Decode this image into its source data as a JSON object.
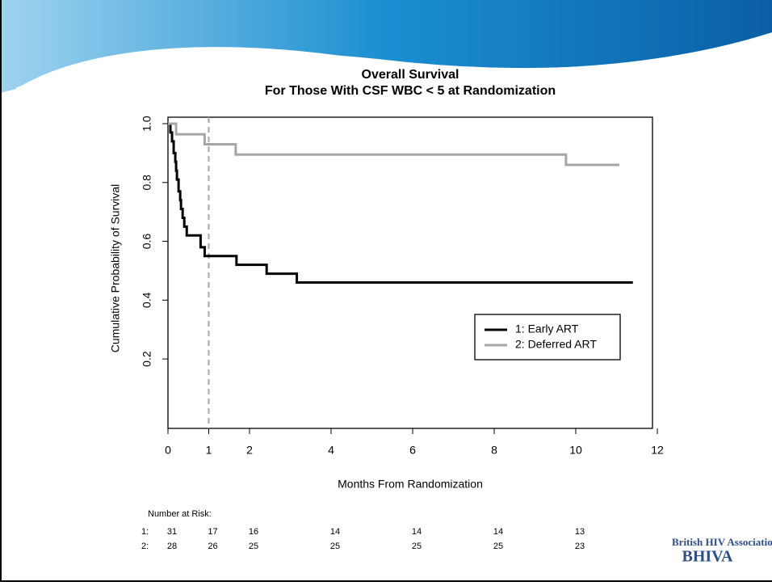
{
  "chart_data": {
    "type": "step",
    "title": "Overall Survival",
    "subtitle": "For Those With CSF WBC < 5 at Randomization",
    "x_label": "Months From Randomization",
    "y_label": "Cumulative Probability of Survival",
    "xlim": [
      0,
      12
    ],
    "ylim": [
      -0.036,
      1.022
    ],
    "xticks": [
      0,
      1,
      2,
      4,
      6,
      8,
      10,
      12
    ],
    "yticks": [
      0.2,
      0.4,
      0.6,
      0.8,
      {
        "value": 1,
        "label": "1.0"
      }
    ],
    "vline": 1,
    "legend": "right",
    "series": [
      {
        "name": "1: Early ART",
        "color": "#000000",
        "x": [
          0,
          0.06,
          0.1,
          0.14,
          0.18,
          0.2,
          0.22,
          0.26,
          0.3,
          0.32,
          0.36,
          0.4,
          0.46,
          0.8,
          0.9,
          1.68,
          2.42,
          3.16,
          11.4
        ],
        "values": [
          1,
          0.97,
          0.94,
          0.9,
          0.87,
          0.84,
          0.81,
          0.77,
          0.74,
          0.71,
          0.68,
          0.65,
          0.62,
          0.58,
          0.55,
          0.52,
          0.49,
          0.46,
          0.46
        ]
      },
      {
        "name": "2: Deferred ART",
        "color": "#a6a6a6",
        "x": [
          0,
          0.2,
          0.9,
          1.66,
          9.76,
          11.07
        ],
        "values": [
          1,
          0.964,
          0.93,
          0.895,
          0.86,
          0.86
        ]
      }
    ]
  },
  "risk_table": {
    "title": "Number at Risk:",
    "rows": [
      {
        "label": "1:",
        "values": [
          31,
          17,
          16,
          14,
          14,
          14,
          13
        ]
      },
      {
        "label": "2:",
        "values": [
          28,
          26,
          25,
          25,
          25,
          25,
          23
        ]
      }
    ]
  },
  "logo": {
    "line1": "British HIV Association",
    "line2": "BHIVA"
  }
}
